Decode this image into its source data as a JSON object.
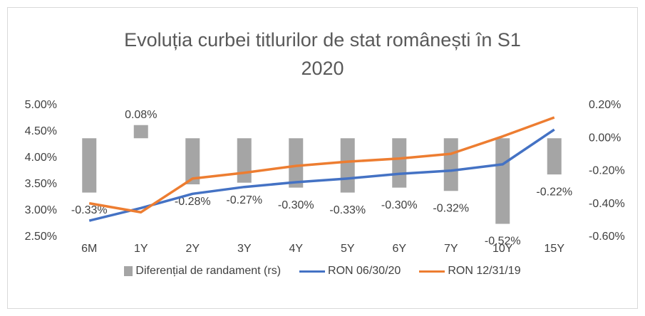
{
  "chart_data": {
    "type": "bar_line",
    "title": "Evoluția curbei titlurilor de stat românești în S1 2020",
    "categories": [
      "6M",
      "1Y",
      "2Y",
      "3Y",
      "4Y",
      "5Y",
      "6Y",
      "7Y",
      "10Y",
      "15Y"
    ],
    "series": [
      {
        "name": "Diferențial de randament (rs)",
        "type": "bar",
        "axis": "y2",
        "color": "#a5a5a5",
        "values": [
          -0.33,
          0.08,
          -0.28,
          -0.27,
          -0.3,
          -0.33,
          -0.3,
          -0.32,
          -0.52,
          -0.22
        ],
        "value_labels": [
          "-0.33%",
          "0.08%",
          "-0.28%",
          "-0.27%",
          "-0.30%",
          "-0.33%",
          "-0.30%",
          "-0.32%",
          "-0.52%",
          "-0.22%"
        ]
      },
      {
        "name": "RON 06/30/20",
        "type": "line",
        "color": "#4472c4",
        "values": [
          2.81,
          3.05,
          3.32,
          3.45,
          3.54,
          3.61,
          3.7,
          3.76,
          3.88,
          4.54
        ]
      },
      {
        "name": "RON 12/31/19",
        "type": "line",
        "color": "#ed7d31",
        "values": [
          3.14,
          2.97,
          3.61,
          3.72,
          3.85,
          3.93,
          3.99,
          4.08,
          4.41,
          4.77
        ]
      }
    ],
    "ylim": [
      2.5,
      5.0
    ],
    "yticks": [
      {
        "value": 2.5,
        "label": "2.50%"
      },
      {
        "value": 3.0,
        "label": "3.00%"
      },
      {
        "value": 3.5,
        "label": "3.50%"
      },
      {
        "value": 4.0,
        "label": "4.00%"
      },
      {
        "value": 4.5,
        "label": "4.50%"
      },
      {
        "value": 5.0,
        "label": "5.00%"
      }
    ],
    "y2lim": [
      -0.6,
      0.2
    ],
    "y2ticks": [
      {
        "value": -0.6,
        "label": "-0.60%"
      },
      {
        "value": -0.4,
        "label": "-0.40%"
      },
      {
        "value": -0.2,
        "label": "-0.20%"
      },
      {
        "value": 0,
        "label": "0.00%"
      },
      {
        "value": 0.2,
        "label": "0.20%"
      }
    ],
    "legend": "bottom"
  }
}
